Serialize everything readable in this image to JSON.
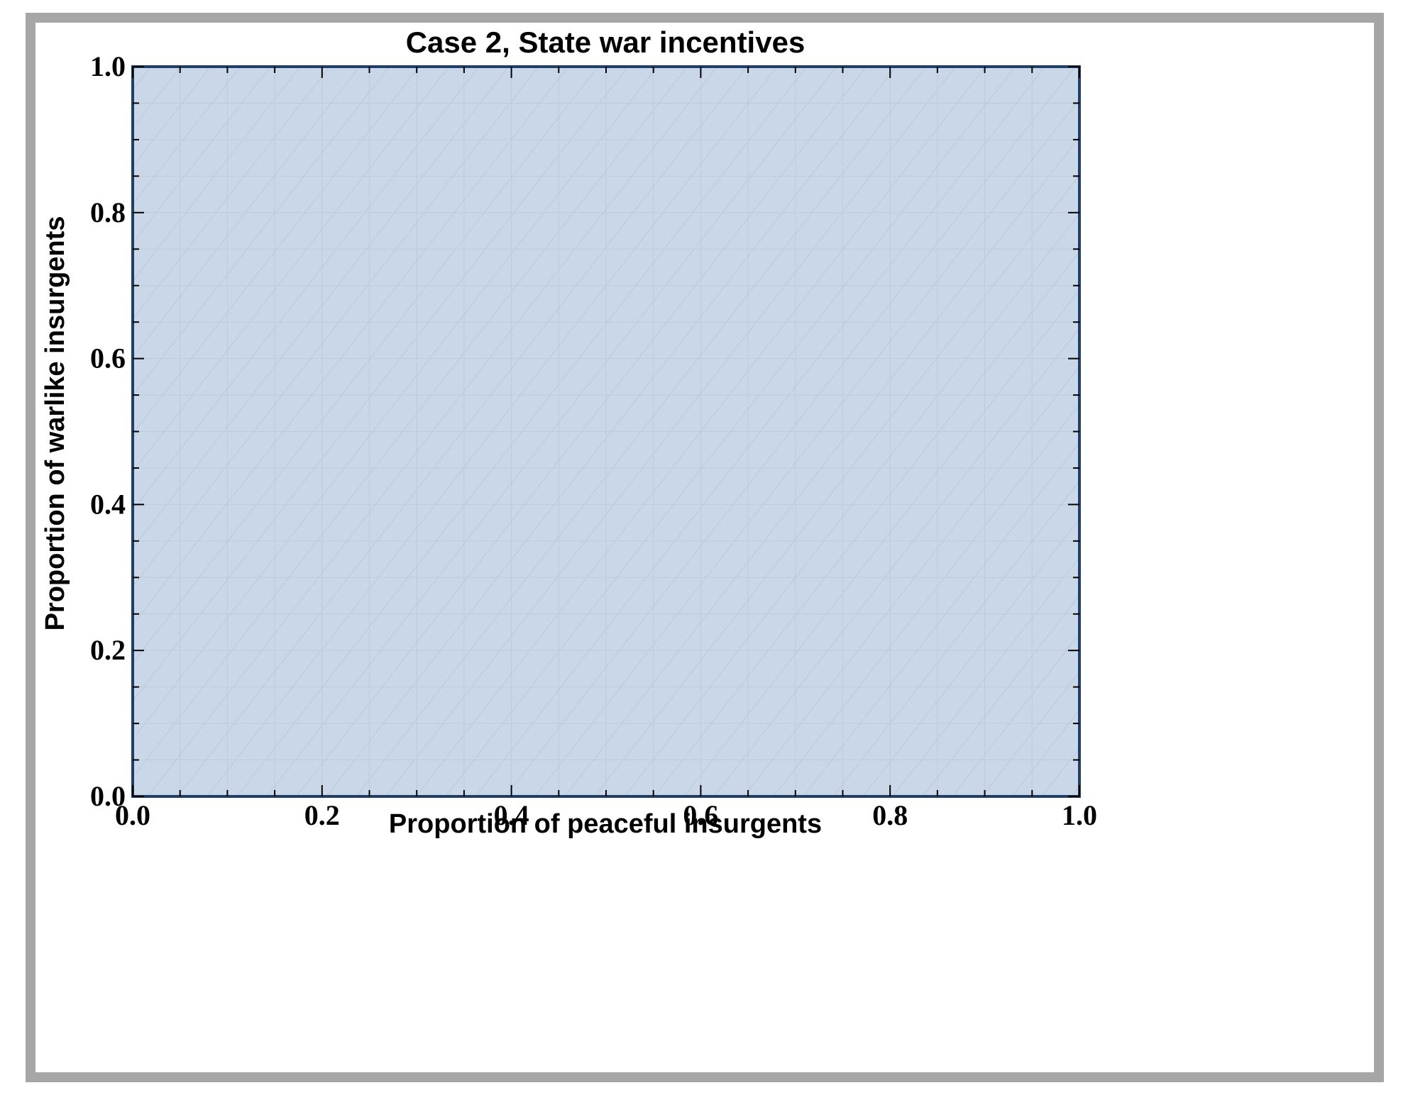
{
  "chart_data": {
    "type": "area",
    "title": "Case 2,  State war incentives",
    "xlabel": "Proportion of peaceful insurgents",
    "ylabel": "Proportion of warlike insurgents",
    "xlim": [
      0.0,
      1.0
    ],
    "ylim": [
      0.0,
      1.0
    ],
    "x_ticks": [
      "0.0",
      "0.2",
      "0.4",
      "0.6",
      "0.8",
      "1.0"
    ],
    "y_ticks": [
      "0.0",
      "0.2",
      "0.4",
      "0.6",
      "0.8",
      "1.0"
    ],
    "x_tick_values": [
      0.0,
      0.2,
      0.4,
      0.6,
      0.8,
      1.0
    ],
    "y_tick_values": [
      0.0,
      0.2,
      0.4,
      0.6,
      0.8,
      1.0
    ],
    "region": {
      "x": [
        0.0,
        1.0,
        1.0,
        0.0
      ],
      "y": [
        0.0,
        0.0,
        1.0,
        1.0
      ]
    },
    "grid": true,
    "legend": "none",
    "colors": {
      "fill": "#c9d7e8",
      "frame": "#1f3f66",
      "grid": "#b3c3d8",
      "hatch": "#b7c6da"
    }
  }
}
